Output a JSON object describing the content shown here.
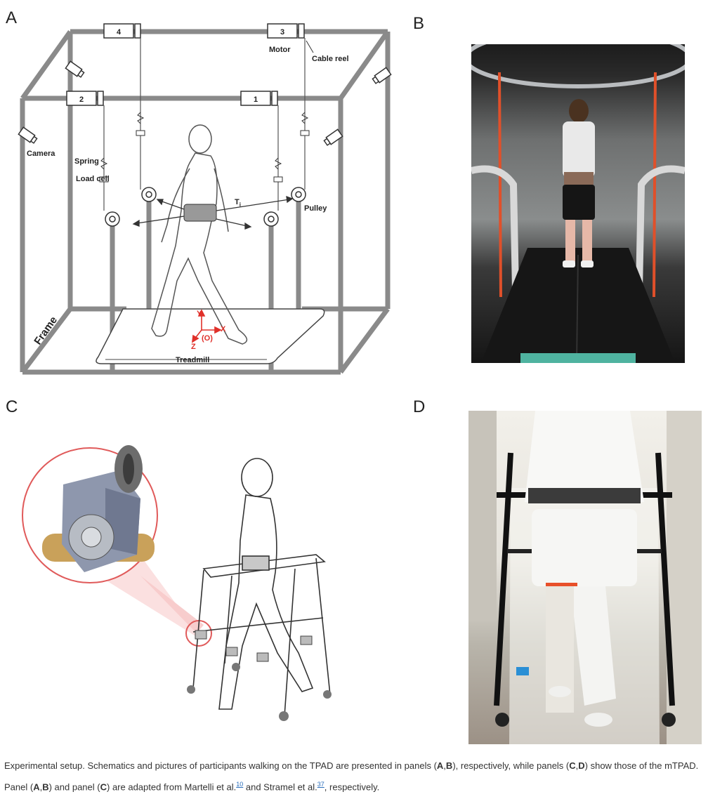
{
  "panels": {
    "a": {
      "letter": "A",
      "motors": [
        "4",
        "3",
        "2",
        "1"
      ],
      "labels": {
        "motor": "Motor",
        "cable_reel": "Cable reel",
        "camera": "Camera",
        "spring": "Spring",
        "load_cell": "Load cell",
        "pulley": "Pulley",
        "tension": "T",
        "tension_sub": "i",
        "frame": "Frame",
        "treadmill": "Treadmill",
        "axis_x": "X",
        "axis_y": "Y",
        "axis_z": "Z",
        "origin": "(O)"
      }
    },
    "b": {
      "letter": "B"
    },
    "c": {
      "letter": "C"
    },
    "d": {
      "letter": "D"
    }
  },
  "caption": {
    "p1": "Experimental setup. Schematics and pictures of participants walking on the TPAD are presented in panels (",
    "p1_b1": "A",
    "p1_sep1": ",",
    "p1_b2": "B",
    "p2": "), respectively, while panels (",
    "p2_b1": "C",
    "p2_sep1": ",",
    "p2_b2": "D",
    "p3": ") show those of the mTPAD. Panel (",
    "p3_b1": "A",
    "p3_sep1": ",",
    "p3_b2": "B",
    "p4": ") and panel (",
    "p4_b1": "C",
    "p5": ") are adapted from Martelli et al.",
    "ref1": "10",
    "p6": " and Stramel et al.",
    "ref2": "37",
    "p7": ", respectively."
  },
  "colors": {
    "frame_gray": "#8a8a8a",
    "axis_red": "#e0302a",
    "magnifier_red": "#e05a5a",
    "link_blue": "#2a6ebb"
  }
}
